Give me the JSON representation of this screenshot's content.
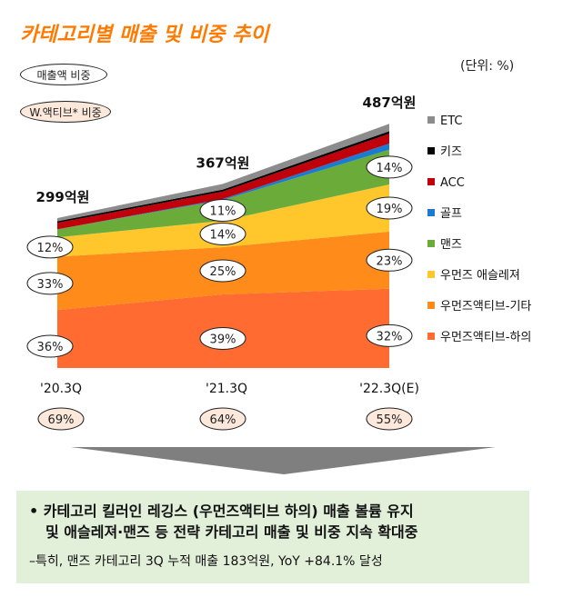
{
  "title": "카테고리별 매출 및 비중 추이",
  "unit_label": "(단위: %)",
  "pill_sales_share": "매출액 비중",
  "pill_w_share": "W.액티브* 비중",
  "colors": {
    "title": "#ff7a00",
    "bottoms": "#ff6b30",
    "etc_active": "#ff8c1a",
    "womens_athleisure": "#ffc72c",
    "mens": "#6aab3a",
    "golf": "#1a7bd0",
    "acc": "#c0000a",
    "kids": "#000000",
    "etc": "#8c8c8c",
    "summary_bg": "#e2efd9",
    "w_share_pill": "#fde8dc",
    "arrow": "#7f7f7f"
  },
  "chart_data": {
    "type": "area",
    "categories": [
      "'20.3Q",
      "'21.3Q",
      "'22.3Q(E)"
    ],
    "totals": [
      299,
      367,
      487
    ],
    "total_labels": [
      "299억원",
      "367억원",
      "487억원"
    ],
    "series": [
      {
        "name": "우먼즈액티브-하의",
        "values": [
          36,
          39,
          32
        ],
        "labels": [
          "36%",
          "39%",
          "32%"
        ],
        "color": "#ff6b30"
      },
      {
        "name": "우먼즈액티브-기타",
        "values": [
          33,
          25,
          23
        ],
        "labels": [
          "33%",
          "25%",
          "23%"
        ],
        "color": "#ff8c1a"
      },
      {
        "name": "우먼즈 애슬레져",
        "values": [
          12,
          14,
          19
        ],
        "labels": [
          "12%",
          "14%",
          "19%"
        ],
        "color": "#ffc72c"
      },
      {
        "name": "맨즈",
        "values": [
          5,
          11,
          14
        ],
        "labels": [
          "",
          "11%",
          "14%"
        ],
        "color": "#6aab3a"
      },
      {
        "name": "골프",
        "values": [
          0,
          0.5,
          2.5
        ],
        "labels": [
          "",
          "",
          ""
        ],
        "color": "#1a7bd0"
      },
      {
        "name": "ACC",
        "values": [
          4,
          4,
          4
        ],
        "labels": [
          "",
          "",
          ""
        ],
        "color": "#c0000a"
      },
      {
        "name": "키즈",
        "values": [
          1,
          1,
          1
        ],
        "labels": [
          "",
          "",
          ""
        ],
        "color": "#000000"
      },
      {
        "name": "ETC",
        "values": [
          2,
          3,
          3
        ],
        "labels": [
          "",
          "",
          ""
        ],
        "color": "#8c8c8c"
      }
    ],
    "legend_order": [
      "ETC",
      "키즈",
      "ACC",
      "골프",
      "맨즈",
      "우먼즈 애슬레져",
      "우먼즈액티브-기타",
      "우먼즈액티브-하의"
    ],
    "legend_position": "right",
    "w_active_share": [
      "69%",
      "64%",
      "55%"
    ]
  },
  "summary": {
    "line1": "• 카테고리 킬러인 레깅스 (우먼즈액티브 하의) 매출 볼륨 유지",
    "line2": "및 애슬레져·맨즈 등 전략 카테고리 매출 및 비중 지속 확대중",
    "sub": "–특히, 맨즈 카테고리 3Q 누적  매출 183억원, YoY +84.1% 달성"
  }
}
